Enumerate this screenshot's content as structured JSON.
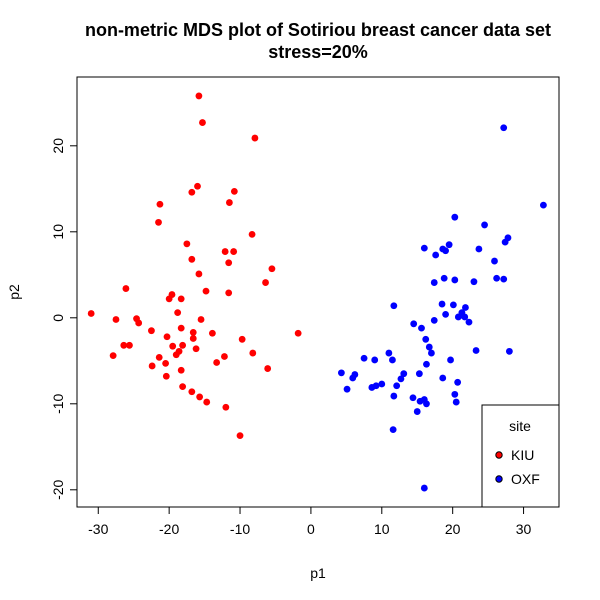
{
  "chart_data": {
    "type": "scatter",
    "title": "non-metric MDS plot of Sotiriou breast cancer data set",
    "subtitle": "stress=20%",
    "xlabel": "p1",
    "ylabel": "p2",
    "xlim": [
      -33,
      35
    ],
    "ylim": [
      -22,
      28
    ],
    "xticks": [
      -30,
      -20,
      -10,
      0,
      10,
      20,
      30
    ],
    "xtick_labels": [
      "-30",
      "-20",
      "-10",
      "0",
      "10",
      "20",
      "30"
    ],
    "yticks": [
      -20,
      -10,
      0,
      10,
      20
    ],
    "ytick_labels": [
      "-20",
      "-10",
      "0",
      "10",
      "20"
    ],
    "grid": false,
    "legend": {
      "title": "site",
      "position": "bottom-right"
    },
    "series": [
      {
        "name": "KIU",
        "color": "#ff0000",
        "points": [
          [
            -15.8,
            25.8
          ],
          [
            -15.3,
            22.7
          ],
          [
            -7.9,
            20.9
          ],
          [
            -16.0,
            15.3
          ],
          [
            -16.8,
            14.6
          ],
          [
            -10.8,
            14.7
          ],
          [
            -11.5,
            13.4
          ],
          [
            -21.3,
            13.2
          ],
          [
            -21.5,
            11.1
          ],
          [
            -8.3,
            9.7
          ],
          [
            -17.5,
            8.6
          ],
          [
            -12.1,
            7.7
          ],
          [
            -10.9,
            7.7
          ],
          [
            -16.8,
            6.8
          ],
          [
            -11.6,
            6.4
          ],
          [
            -5.5,
            5.7
          ],
          [
            -15.8,
            5.1
          ],
          [
            -6.4,
            4.1
          ],
          [
            -26.1,
            3.4
          ],
          [
            -14.8,
            3.1
          ],
          [
            -11.6,
            2.9
          ],
          [
            -19.6,
            2.7
          ],
          [
            -18.3,
            2.2
          ],
          [
            -20.0,
            2.2
          ],
          [
            -18.8,
            0.6
          ],
          [
            -31.0,
            0.5
          ],
          [
            -27.5,
            -0.2
          ],
          [
            -24.6,
            -0.1
          ],
          [
            -24.3,
            -0.6
          ],
          [
            -15.5,
            -0.2
          ],
          [
            -22.5,
            -1.5
          ],
          [
            -18.3,
            -1.2
          ],
          [
            -16.6,
            -1.7
          ],
          [
            -13.9,
            -1.8
          ],
          [
            -20.3,
            -2.2
          ],
          [
            -16.6,
            -2.4
          ],
          [
            -9.7,
            -2.5
          ],
          [
            -1.8,
            -1.8
          ],
          [
            -26.4,
            -3.2
          ],
          [
            -25.6,
            -3.2
          ],
          [
            -19.5,
            -3.3
          ],
          [
            -18.1,
            -3.2
          ],
          [
            -18.6,
            -3.9
          ],
          [
            -16.2,
            -3.6
          ],
          [
            -27.9,
            -4.4
          ],
          [
            -21.4,
            -4.6
          ],
          [
            -19.0,
            -4.3
          ],
          [
            -12.2,
            -4.5
          ],
          [
            -8.2,
            -4.1
          ],
          [
            -22.4,
            -5.6
          ],
          [
            -20.5,
            -5.3
          ],
          [
            -13.3,
            -5.2
          ],
          [
            -6.1,
            -5.9
          ],
          [
            -18.3,
            -6.1
          ],
          [
            -20.4,
            -6.8
          ],
          [
            -18.1,
            -8.0
          ],
          [
            -16.8,
            -8.6
          ],
          [
            -15.7,
            -9.2
          ],
          [
            -14.7,
            -9.8
          ],
          [
            -12.0,
            -10.4
          ],
          [
            -10.0,
            -13.7
          ]
        ]
      },
      {
        "name": "OXF",
        "color": "#0000ff",
        "points": [
          [
            27.2,
            22.1
          ],
          [
            32.8,
            13.1
          ],
          [
            20.3,
            11.7
          ],
          [
            24.5,
            10.8
          ],
          [
            27.8,
            9.3
          ],
          [
            19.5,
            8.5
          ],
          [
            18.6,
            8.0
          ],
          [
            19.0,
            7.8
          ],
          [
            23.7,
            8.0
          ],
          [
            27.4,
            8.8
          ],
          [
            16.0,
            8.1
          ],
          [
            25.9,
            6.6
          ],
          [
            17.6,
            7.3
          ],
          [
            26.2,
            4.6
          ],
          [
            27.2,
            4.5
          ],
          [
            20.3,
            4.4
          ],
          [
            18.8,
            4.6
          ],
          [
            17.4,
            4.1
          ],
          [
            23.0,
            4.2
          ],
          [
            18.5,
            1.6
          ],
          [
            20.1,
            1.5
          ],
          [
            21.8,
            1.2
          ],
          [
            11.7,
            1.4
          ],
          [
            20.8,
            0.1
          ],
          [
            21.7,
            0.1
          ],
          [
            21.3,
            0.6
          ],
          [
            19.0,
            0.4
          ],
          [
            22.3,
            -0.5
          ],
          [
            17.4,
            -0.3
          ],
          [
            15.6,
            -1.2
          ],
          [
            14.5,
            -0.7
          ],
          [
            16.2,
            -2.5
          ],
          [
            16.7,
            -3.4
          ],
          [
            23.3,
            -3.8
          ],
          [
            28.0,
            -3.9
          ],
          [
            11.0,
            -4.1
          ],
          [
            17.0,
            -4.1
          ],
          [
            19.7,
            -4.9
          ],
          [
            7.5,
            -4.7
          ],
          [
            9.0,
            -4.9
          ],
          [
            11.5,
            -4.9
          ],
          [
            16.3,
            -5.4
          ],
          [
            4.3,
            -6.4
          ],
          [
            6.2,
            -6.6
          ],
          [
            5.9,
            -7.0
          ],
          [
            13.1,
            -6.5
          ],
          [
            15.3,
            -6.5
          ],
          [
            12.7,
            -7.1
          ],
          [
            18.6,
            -7.0
          ],
          [
            8.6,
            -8.1
          ],
          [
            9.2,
            -7.9
          ],
          [
            10.0,
            -7.7
          ],
          [
            12.1,
            -7.9
          ],
          [
            20.7,
            -7.5
          ],
          [
            5.1,
            -8.3
          ],
          [
            11.7,
            -9.1
          ],
          [
            14.4,
            -9.3
          ],
          [
            15.4,
            -9.7
          ],
          [
            16.0,
            -9.5
          ],
          [
            16.3,
            -10.0
          ],
          [
            20.3,
            -8.9
          ],
          [
            20.5,
            -9.8
          ],
          [
            15.0,
            -10.9
          ],
          [
            11.6,
            -13.0
          ],
          [
            16.0,
            -19.8
          ]
        ]
      }
    ]
  }
}
